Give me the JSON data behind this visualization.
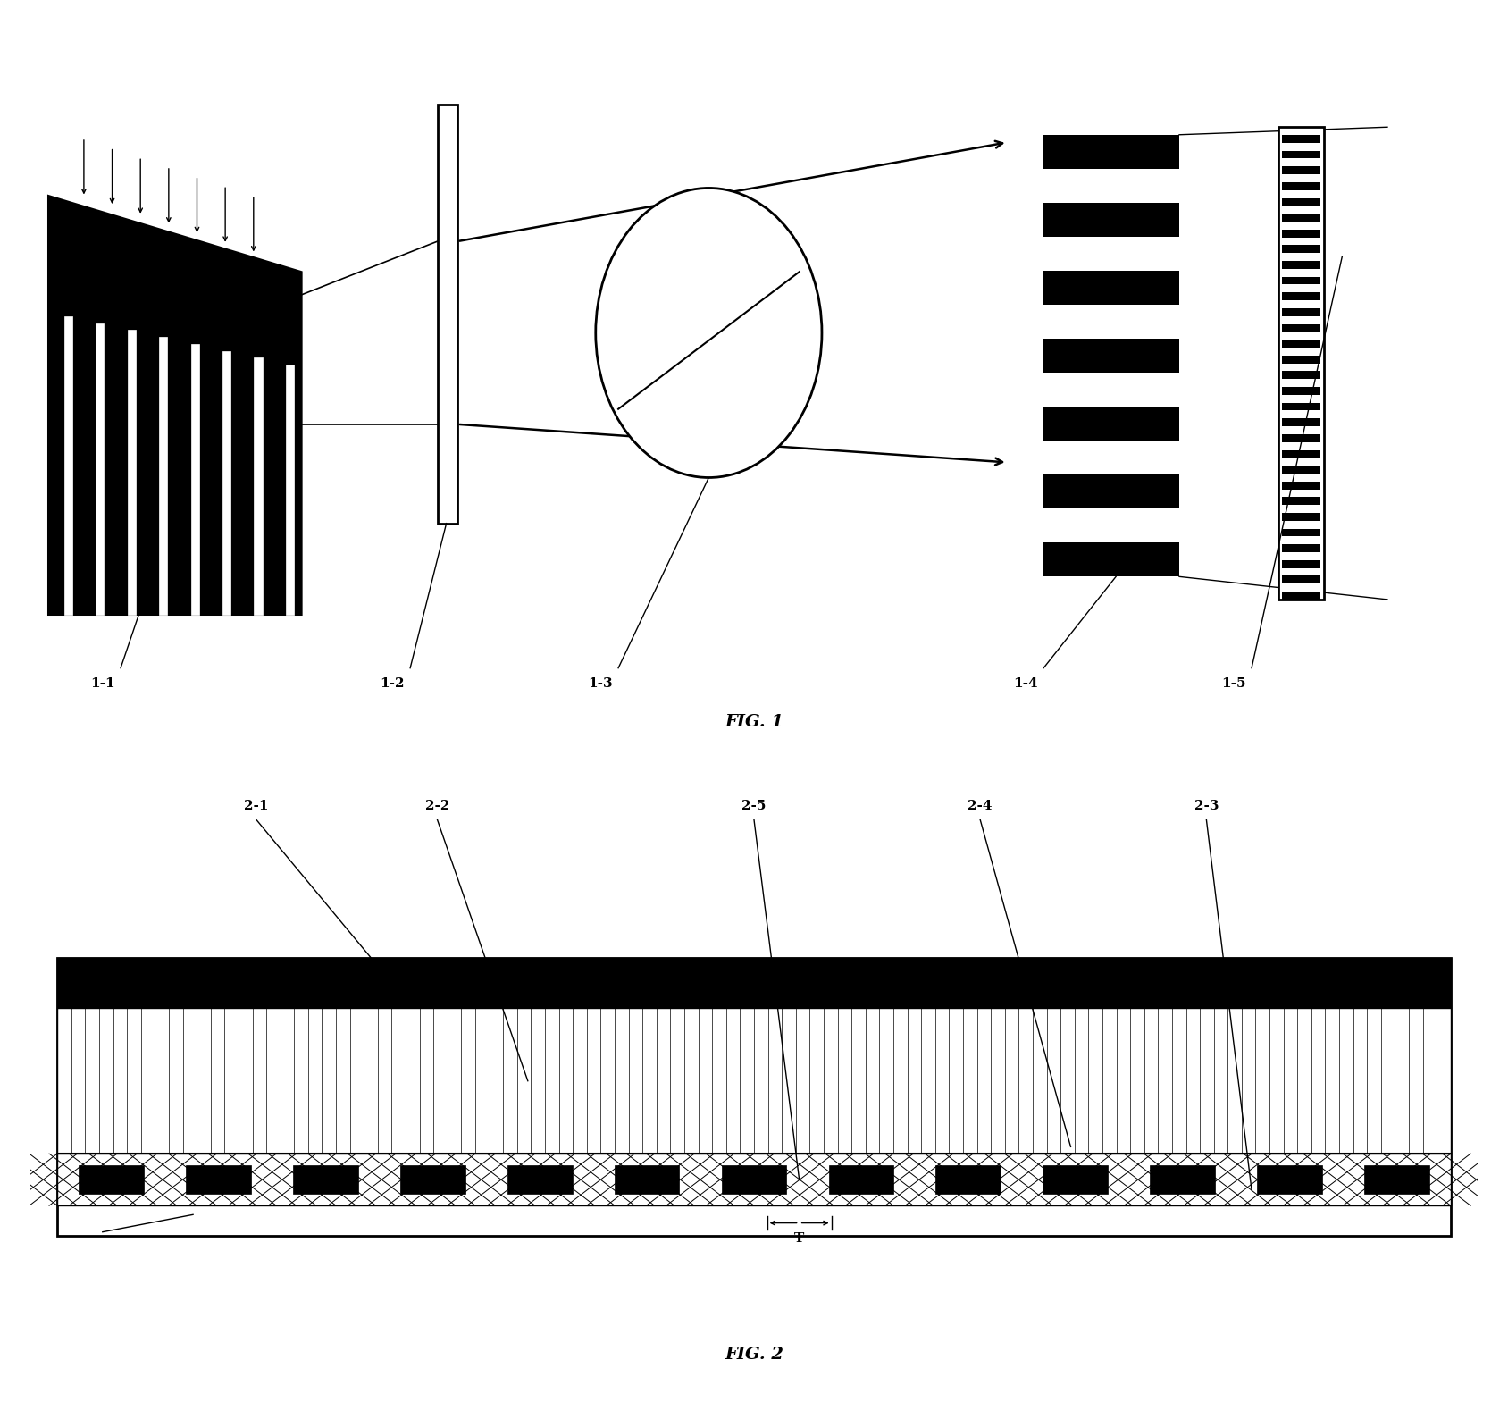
{
  "fig_width": 16.88,
  "fig_height": 15.69,
  "bg_color": "#ffffff",
  "fig1_title": "FIG. 1",
  "fig2_title": "FIG. 2",
  "labels_fig1": [
    "1-1",
    "1-2",
    "1-3",
    "1-4",
    "1-5"
  ],
  "labels_fig2": [
    "2-1",
    "2-2",
    "2-5",
    "2-4",
    "2-3"
  ],
  "T_label": "T"
}
